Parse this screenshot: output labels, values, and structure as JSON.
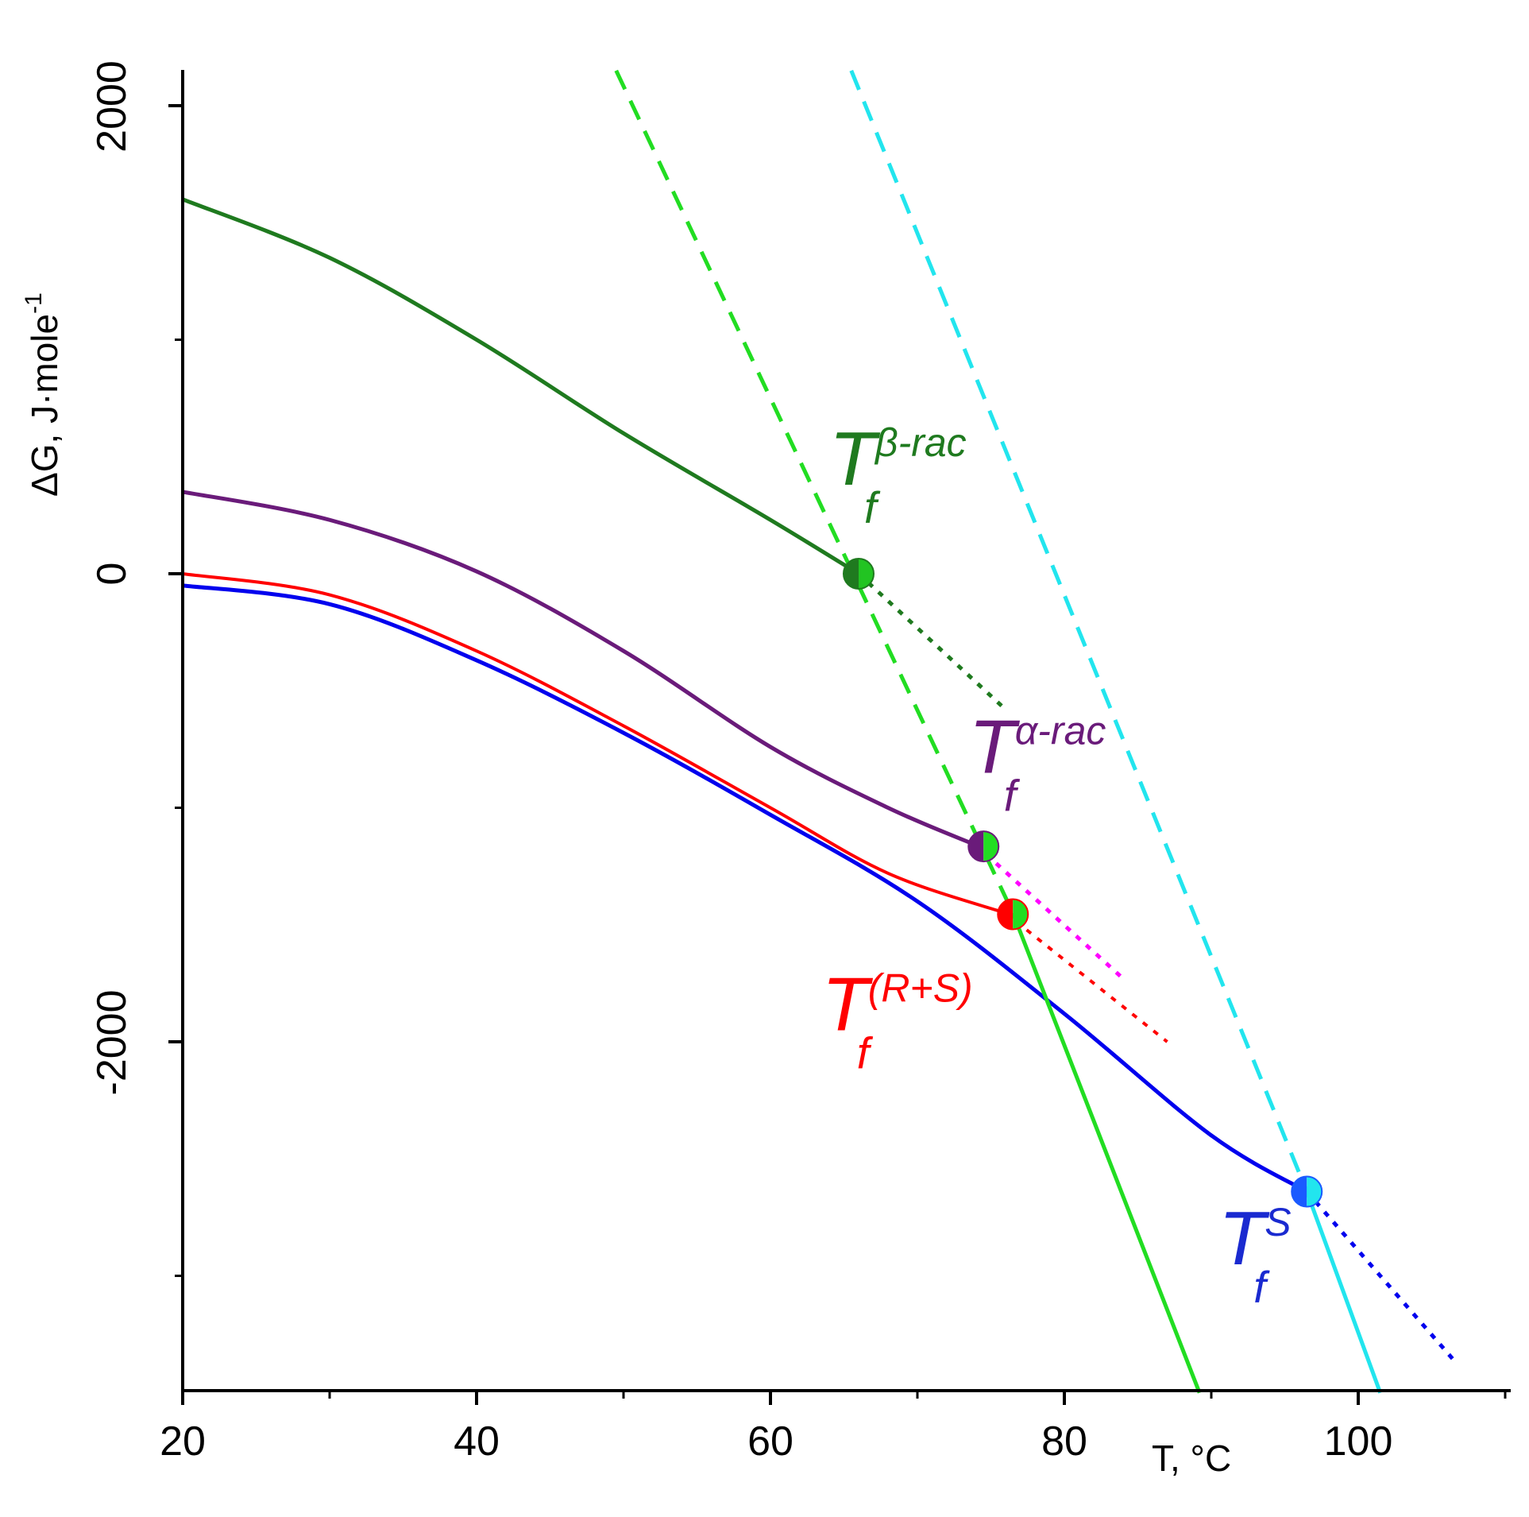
{
  "chart_data": {
    "type": "line",
    "xlabel": "T, °C",
    "ylabel_main": "ΔG, J·mole",
    "ylabel_sup": "-1",
    "xlim": [
      20,
      110
    ],
    "ylim": [
      -3500,
      2150
    ],
    "x_major_ticks": [
      20,
      40,
      60,
      80,
      100
    ],
    "x_minor_ticks": [
      30,
      50,
      70,
      90,
      110
    ],
    "y_major_ticks": [
      2000,
      0,
      -2000
    ],
    "y_minor_ticks": [
      1000,
      -1000,
      -3000
    ],
    "x_tick_labels": [
      "20",
      "40",
      "60",
      "80",
      "100"
    ],
    "y_tick_labels": [
      "2000",
      "0",
      "-2000"
    ],
    "grid": false,
    "series": [
      {
        "name": "beta-rac",
        "color": "#1f7a1f",
        "style": "solid",
        "width": 5,
        "x": [
          20,
          30,
          40,
          50,
          60,
          66
        ],
        "y": [
          1600,
          1350,
          1000,
          600,
          230,
          0
        ]
      },
      {
        "name": "beta-rac-extension",
        "color": "#1f7a1f",
        "style": "dotted",
        "width": 5,
        "x": [
          66,
          76
        ],
        "y": [
          0,
          -580
        ]
      },
      {
        "name": "alpha-rac",
        "color": "#6a1b7a",
        "style": "solid",
        "width": 5,
        "x": [
          20,
          30,
          40,
          50,
          60,
          68,
          74
        ],
        "y": [
          350,
          230,
          10,
          -330,
          -740,
          -1000,
          -1160
        ]
      },
      {
        "name": "alpha-rac-extension",
        "color": "#ff00ff",
        "style": "dotted",
        "width": 5,
        "x": [
          74,
          84
        ],
        "y": [
          -1160,
          -1730
        ]
      },
      {
        "name": "R+S",
        "color": "#ff0000",
        "style": "solid",
        "width": 4,
        "x": [
          20,
          30,
          40,
          50,
          60,
          68,
          76
        ],
        "y": [
          0,
          -90,
          -330,
          -650,
          -1000,
          -1280,
          -1450
        ]
      },
      {
        "name": "R+S-extension",
        "color": "#ff0000",
        "style": "dotted",
        "width": 4,
        "x": [
          76,
          87
        ],
        "y": [
          -1450,
          -2000
        ]
      },
      {
        "name": "S",
        "color": "#0000ee",
        "style": "solid",
        "width": 5,
        "x": [
          20,
          30,
          40,
          50,
          60,
          70,
          80,
          90,
          96.5
        ],
        "y": [
          -50,
          -130,
          -370,
          -680,
          -1030,
          -1400,
          -1880,
          -2400,
          -2640
        ]
      },
      {
        "name": "S-extension",
        "color": "#0000ee",
        "style": "dotted",
        "width": 5,
        "x": [
          96.5,
          106.5
        ],
        "y": [
          -2640,
          -3360
        ]
      },
      {
        "name": "liquid-rac",
        "color": "#22dd22",
        "style": "dashed",
        "width": 5,
        "x": [
          49.5,
          76.5
        ],
        "y": [
          2150,
          -1450
        ]
      },
      {
        "name": "liquid-rac-solid",
        "color": "#22dd22",
        "style": "solid",
        "width": 5,
        "x": [
          76.5,
          89.2
        ],
        "y": [
          -1450,
          -3500
        ]
      },
      {
        "name": "liquid-S",
        "color": "#22e5ee",
        "style": "dashed",
        "width": 5,
        "x": [
          65.5,
          96.5
        ],
        "y": [
          2150,
          -2640
        ]
      },
      {
        "name": "liquid-S-solid",
        "color": "#22e5ee",
        "style": "solid",
        "width": 5,
        "x": [
          96.5,
          101.5
        ],
        "y": [
          -2640,
          -3500
        ]
      }
    ],
    "markers": [
      {
        "name": "beta-rac",
        "x": 66,
        "y": 0,
        "left": "#1f7a1f",
        "right": "#22c422"
      },
      {
        "name": "alpha-rac",
        "x": 74.5,
        "y": -1165,
        "left": "#6a1b7a",
        "right": "#22dd22"
      },
      {
        "name": "R+S",
        "x": 76.5,
        "y": -1455,
        "left": "#ff0000",
        "right": "#22dd22"
      },
      {
        "name": "S",
        "x": 96.5,
        "y": -2640,
        "left": "#1a5aff",
        "right": "#22e5ee"
      }
    ],
    "annotations": [
      {
        "name": "beta-rac",
        "main": "T",
        "sub": "f",
        "sup": "β-rac",
        "color": "#1f7a1f",
        "x": 64,
        "y": 380
      },
      {
        "name": "alpha-rac",
        "main": "T",
        "sub": "f",
        "sup": "α-rac",
        "color": "#6a1b7a",
        "x": 73.5,
        "y": -850
      },
      {
        "name": "R+S",
        "main": "T",
        "sub": "f",
        "sup": "(R+S)",
        "color": "#ff0000",
        "x": 63.5,
        "y": -1950
      },
      {
        "name": "S",
        "main": "T",
        "sub": "f",
        "sup": "S",
        "color": "#1a2ad0",
        "x": 90.5,
        "y": -2950
      }
    ]
  }
}
